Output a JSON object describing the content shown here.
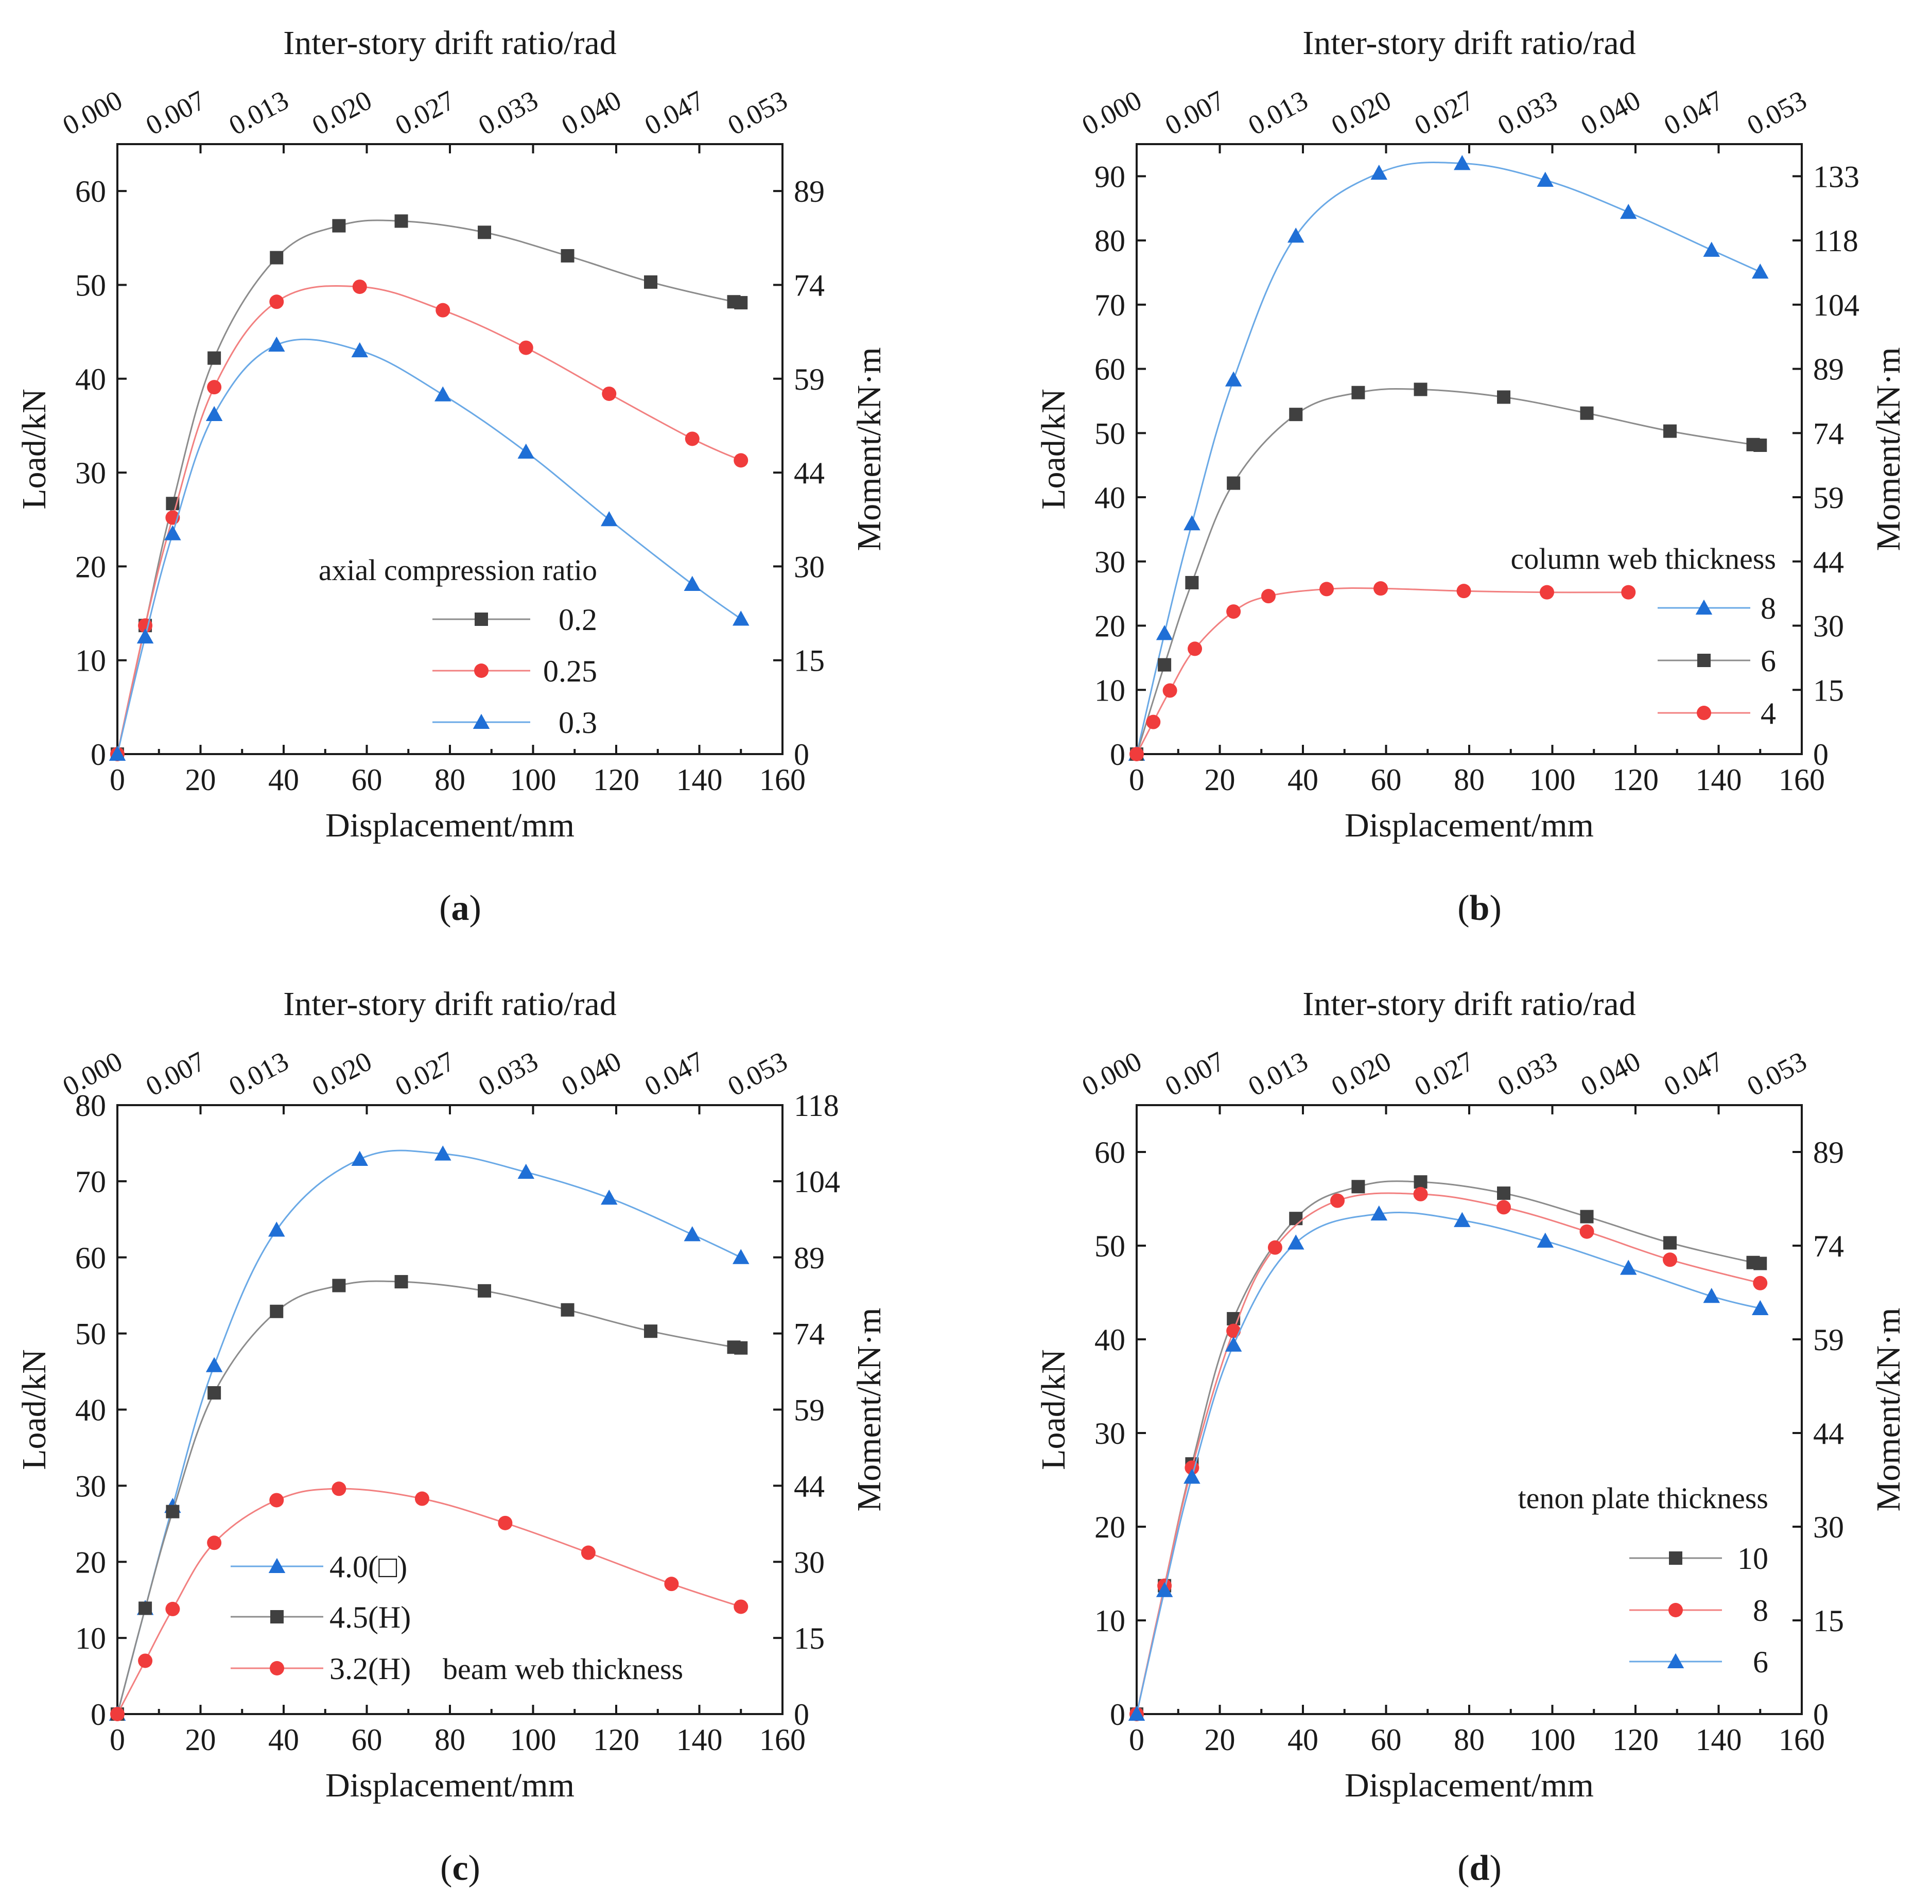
{
  "x_axis_title": "Displacement/mm",
  "top_axis_title": "Inter-story drift ratio/rad",
  "left_axis_title": "Load/kN",
  "right_axis_title": "Moment/kN·m",
  "colors": {
    "gray": "#404040",
    "gray_line": "#8c8c8c",
    "red": "#f03c3c",
    "red_line": "#f28080",
    "blue": "#1f6fd6",
    "blue_line": "#6aa9e6"
  },
  "chart_data": [
    {
      "type": "line",
      "id": "a",
      "caption_letter": "a",
      "legend_title": "axial compression ratio",
      "xlim": [
        0,
        160
      ],
      "x_ticks": [
        0,
        20,
        40,
        60,
        80,
        100,
        120,
        140,
        160
      ],
      "ylim": [
        0,
        65
      ],
      "y_ticks": [
        0,
        10,
        20,
        30,
        40,
        50,
        60
      ],
      "right_ticks": [
        "0",
        "15",
        "30",
        "44",
        "59",
        "74",
        "89"
      ],
      "top_ticks": [
        "0.000",
        "0.007",
        "0.013",
        "0.020",
        "0.027",
        "0.033",
        "0.040",
        "0.047",
        "0.053"
      ],
      "series": [
        {
          "name": "0.2",
          "color": "gray",
          "marker": "square",
          "x": [
            0,
            6.7,
            13.3,
            23.3,
            38.3,
            53.3,
            68.3,
            88.3,
            108.3,
            128.3,
            148.3,
            150
          ],
          "y": [
            0,
            13.7,
            26.7,
            42.2,
            52.9,
            56.3,
            56.8,
            55.6,
            53.1,
            50.3,
            48.2,
            48.1
          ]
        },
        {
          "name": "0.25",
          "color": "red",
          "marker": "circle",
          "x": [
            0,
            6.7,
            13.3,
            23.3,
            38.3,
            58.3,
            78.3,
            98.3,
            118.3,
            138.3,
            150
          ],
          "y": [
            0,
            13.7,
            25.2,
            39.1,
            48.2,
            49.8,
            47.3,
            43.3,
            38.4,
            33.6,
            31.3
          ]
        },
        {
          "name": "0.3",
          "color": "blue",
          "marker": "triangle",
          "x": [
            0,
            6.7,
            13.3,
            23.3,
            38.3,
            58.3,
            78.3,
            98.3,
            118.3,
            138.3,
            150
          ],
          "y": [
            0,
            12.5,
            23.5,
            36.2,
            43.6,
            43.0,
            38.3,
            32.2,
            25.0,
            18.1,
            14.4
          ]
        }
      ]
    },
    {
      "type": "line",
      "id": "b",
      "caption_letter": "b",
      "legend_title": "column web thickness",
      "xlim": [
        0,
        160
      ],
      "x_ticks": [
        0,
        20,
        40,
        60,
        80,
        100,
        120,
        140,
        160
      ],
      "ylim": [
        0,
        95
      ],
      "y_ticks": [
        0,
        10,
        20,
        30,
        40,
        50,
        60,
        70,
        80,
        90
      ],
      "right_ticks": [
        "0",
        "15",
        "30",
        "44",
        "59",
        "74",
        "89",
        "104",
        "118",
        "133"
      ],
      "top_ticks": [
        "0.000",
        "0.007",
        "0.013",
        "0.020",
        "0.027",
        "0.033",
        "0.040",
        "0.047",
        "0.053"
      ],
      "series": [
        {
          "name": "8",
          "color": "blue",
          "marker": "triangle",
          "x": [
            0,
            6.7,
            13.3,
            23.3,
            38.3,
            58.3,
            78.3,
            98.3,
            118.3,
            138.3,
            150
          ],
          "y": [
            0,
            18.8,
            35.9,
            58.3,
            80.7,
            90.5,
            92.0,
            89.4,
            84.4,
            78.5,
            75.1
          ]
        },
        {
          "name": "6",
          "color": "gray",
          "marker": "square",
          "x": [
            0,
            6.7,
            13.3,
            23.3,
            38.3,
            53.3,
            68.3,
            88.3,
            108.3,
            128.3,
            148.3,
            150
          ],
          "y": [
            0,
            13.9,
            26.7,
            42.2,
            52.9,
            56.3,
            56.8,
            55.6,
            53.1,
            50.3,
            48.2,
            48.1
          ]
        },
        {
          "name": "4",
          "color": "red",
          "marker": "circle",
          "x": [
            0,
            4,
            8,
            14,
            23.3,
            31.7,
            45.7,
            58.7,
            78.7,
            98.7,
            118.3
          ],
          "y": [
            0,
            5.0,
            9.9,
            16.4,
            22.2,
            24.6,
            25.7,
            25.8,
            25.4,
            25.2,
            25.2
          ]
        }
      ]
    },
    {
      "type": "line",
      "id": "c",
      "caption_letter": "c",
      "legend_title": "beam web thickness",
      "xlim": [
        0,
        160
      ],
      "x_ticks": [
        0,
        20,
        40,
        60,
        80,
        100,
        120,
        140,
        160
      ],
      "ylim": [
        0,
        80
      ],
      "y_ticks": [
        0,
        10,
        20,
        30,
        40,
        50,
        60,
        70,
        80
      ],
      "right_ticks": [
        "0",
        "15",
        "30",
        "44",
        "59",
        "74",
        "89",
        "104",
        "118"
      ],
      "top_ticks": [
        "0.000",
        "0.007",
        "0.013",
        "0.020",
        "0.027",
        "0.033",
        "0.040",
        "0.047",
        "0.053"
      ],
      "series": [
        {
          "name": "4.0(□)",
          "color": "blue",
          "marker": "triangle",
          "x": [
            0,
            6.7,
            13.3,
            23.3,
            38.3,
            58.3,
            78.3,
            98.3,
            118.3,
            138.3,
            150
          ],
          "y": [
            0,
            13.9,
            27.3,
            45.8,
            63.6,
            72.9,
            73.6,
            71.2,
            67.8,
            63.0,
            60.0
          ]
        },
        {
          "name": "4.5(H)",
          "color": "gray",
          "marker": "square",
          "x": [
            0,
            6.7,
            13.3,
            23.3,
            38.3,
            53.3,
            68.3,
            88.3,
            108.3,
            128.3,
            148.3,
            150
          ],
          "y": [
            0,
            13.9,
            26.6,
            42.2,
            52.9,
            56.3,
            56.8,
            55.6,
            53.1,
            50.3,
            48.2,
            48.1
          ]
        },
        {
          "name": "3.2(H)",
          "color": "red",
          "marker": "circle",
          "x": [
            0,
            6.7,
            13.3,
            23.3,
            38.3,
            53.3,
            73.3,
            93.3,
            113.3,
            133.3,
            150
          ],
          "y": [
            0,
            7.0,
            13.8,
            22.5,
            28.1,
            29.6,
            28.3,
            25.1,
            21.2,
            17.1,
            14.1
          ]
        }
      ]
    },
    {
      "type": "line",
      "id": "d",
      "caption_letter": "d",
      "legend_title": "tenon plate thickness",
      "xlim": [
        0,
        160
      ],
      "x_ticks": [
        0,
        20,
        40,
        60,
        80,
        100,
        120,
        140,
        160
      ],
      "ylim": [
        0,
        65
      ],
      "y_ticks": [
        0,
        10,
        20,
        30,
        40,
        50,
        60
      ],
      "right_ticks": [
        "0",
        "15",
        "30",
        "44",
        "59",
        "74",
        "89"
      ],
      "top_ticks": [
        "0.000",
        "0.007",
        "0.013",
        "0.020",
        "0.027",
        "0.033",
        "0.040",
        "0.047",
        "0.053"
      ],
      "series": [
        {
          "name": "10",
          "color": "gray",
          "marker": "square",
          "x": [
            0,
            6.7,
            13.3,
            23.3,
            38.3,
            53.3,
            68.3,
            88.3,
            108.3,
            128.3,
            148.3,
            150
          ],
          "y": [
            0,
            13.7,
            26.7,
            42.2,
            52.9,
            56.3,
            56.8,
            55.6,
            53.1,
            50.3,
            48.2,
            48.1
          ]
        },
        {
          "name": "8",
          "color": "red",
          "marker": "circle",
          "x": [
            0,
            6.7,
            13.3,
            23.3,
            33.3,
            48.3,
            68.3,
            88.3,
            108.3,
            128.3,
            150
          ],
          "y": [
            0,
            13.7,
            26.3,
            40.9,
            49.8,
            54.8,
            55.5,
            54.1,
            51.5,
            48.5,
            46.0
          ]
        },
        {
          "name": "6",
          "color": "blue",
          "marker": "triangle",
          "x": [
            0,
            6.7,
            13.3,
            23.3,
            38.3,
            58.3,
            78.3,
            98.3,
            118.3,
            138.3,
            150
          ],
          "y": [
            0,
            13.2,
            25.3,
            39.4,
            50.3,
            53.4,
            52.7,
            50.5,
            47.6,
            44.6,
            43.3
          ]
        }
      ]
    }
  ]
}
